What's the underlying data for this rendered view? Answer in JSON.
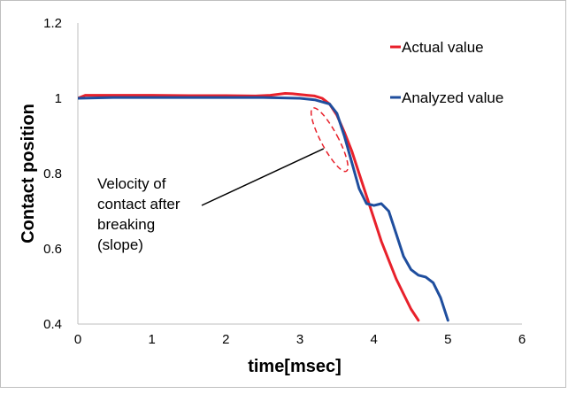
{
  "chart_data": {
    "type": "line",
    "title": "",
    "xlabel": "time[msec]",
    "ylabel": "Contact position",
    "xlim": [
      0,
      6
    ],
    "ylim": [
      0.4,
      1.2
    ],
    "x_ticks": [
      0,
      1,
      2,
      3,
      4,
      5,
      6
    ],
    "y_ticks": [
      0.4,
      0.6,
      0.8,
      1,
      1.2
    ],
    "x_tick_labels": [
      "0",
      "1",
      "2",
      "3",
      "4",
      "5",
      "6"
    ],
    "y_tick_labels": [
      "0.4",
      "0.6",
      "0.8",
      "1",
      "1.2"
    ],
    "grid": false,
    "legend_position": "top-right",
    "series": [
      {
        "name": "Actual value",
        "color": "#e8212b",
        "x": [
          0,
          0.1,
          0.5,
          1.0,
          1.5,
          2.0,
          2.4,
          2.6,
          2.8,
          2.9,
          3.0,
          3.1,
          3.2,
          3.3,
          3.4,
          3.5,
          3.6,
          3.7,
          3.8,
          3.9,
          4.0,
          4.1,
          4.2,
          4.3,
          4.4,
          4.5,
          4.6
        ],
        "y": [
          1.0,
          1.008,
          1.008,
          1.008,
          1.007,
          1.007,
          1.006,
          1.008,
          1.013,
          1.012,
          1.01,
          1.008,
          1.006,
          1.0,
          0.985,
          0.955,
          0.91,
          0.86,
          0.8,
          0.74,
          0.68,
          0.62,
          0.57,
          0.52,
          0.48,
          0.44,
          0.41
        ]
      },
      {
        "name": "Analyzed value",
        "color": "#1f4e9e",
        "x": [
          0,
          0.5,
          1.0,
          1.5,
          2.0,
          2.5,
          3.0,
          3.2,
          3.4,
          3.5,
          3.6,
          3.7,
          3.8,
          3.9,
          4.0,
          4.1,
          4.2,
          4.3,
          4.4,
          4.5,
          4.6,
          4.7,
          4.8,
          4.9,
          5.0
        ],
        "y": [
          1.0,
          1.002,
          1.002,
          1.002,
          1.002,
          1.002,
          1.0,
          0.996,
          0.985,
          0.96,
          0.9,
          0.83,
          0.76,
          0.72,
          0.715,
          0.72,
          0.7,
          0.64,
          0.58,
          0.545,
          0.53,
          0.525,
          0.51,
          0.47,
          0.41
        ]
      }
    ],
    "annotations": [
      {
        "text_lines": [
          "Velocity of",
          "contact after",
          "breaking",
          "(slope)"
        ],
        "points_to": [
          3.32,
          0.866
        ],
        "ellipse_center": [
          3.4,
          0.89
        ],
        "ellipse_radius_data": [
          0.32,
          0.1
        ],
        "ellipse_color": "#e8212b",
        "line_color": "#000000"
      }
    ]
  }
}
